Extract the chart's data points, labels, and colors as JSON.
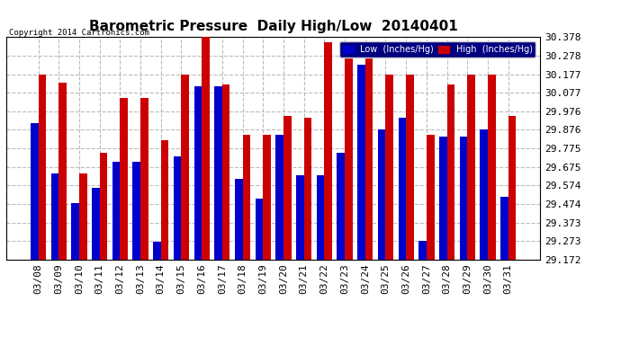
{
  "title": "Barometric Pressure  Daily High/Low  20140401",
  "copyright": "Copyright 2014 Cartronics.com",
  "ylabel_right_ticks": [
    29.172,
    29.273,
    29.373,
    29.474,
    29.574,
    29.675,
    29.775,
    29.876,
    29.976,
    30.077,
    30.177,
    30.278,
    30.378
  ],
  "dates": [
    "03/08",
    "03/09",
    "03/10",
    "03/11",
    "03/12",
    "03/13",
    "03/14",
    "03/15",
    "03/16",
    "03/17",
    "03/18",
    "03/19",
    "03/20",
    "03/21",
    "03/22",
    "03/23",
    "03/24",
    "03/25",
    "03/26",
    "03/27",
    "03/28",
    "03/29",
    "03/30",
    "03/31"
  ],
  "low": [
    29.91,
    29.64,
    29.48,
    29.56,
    29.7,
    29.7,
    29.27,
    29.73,
    30.11,
    30.11,
    29.61,
    29.5,
    29.85,
    29.63,
    29.63,
    29.75,
    30.23,
    29.876,
    29.94,
    29.273,
    29.84,
    29.84,
    29.876,
    29.51
  ],
  "high": [
    30.177,
    30.13,
    29.64,
    29.75,
    30.05,
    30.05,
    29.82,
    30.177,
    30.378,
    30.12,
    29.85,
    29.85,
    29.95,
    29.94,
    30.35,
    30.35,
    30.278,
    30.177,
    30.177,
    29.85,
    30.12,
    30.177,
    30.177,
    29.95
  ],
  "bar_width": 0.38,
  "low_color": "#0000cc",
  "high_color": "#cc0000",
  "bg_color": "#ffffff",
  "grid_color": "#bbbbbb",
  "title_fontsize": 11,
  "tick_fontsize": 8,
  "legend_low_label": "Low  (Inches/Hg)",
  "legend_high_label": "High  (Inches/Hg)",
  "ymin": 29.172,
  "ymax": 30.378
}
